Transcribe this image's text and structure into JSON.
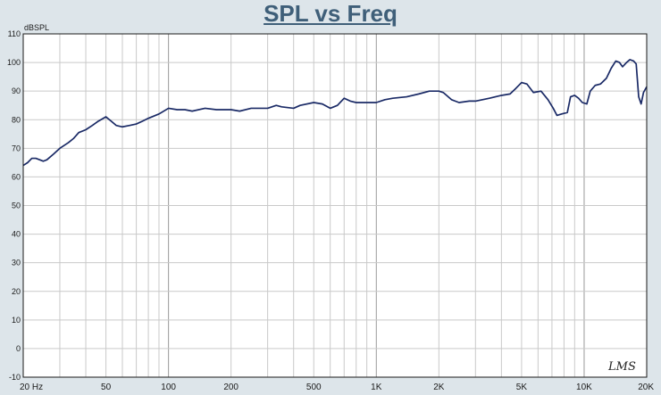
{
  "chart_data": {
    "type": "line",
    "title": "SPL vs Freq",
    "ylabel": "dBSPL",
    "xlabel": "",
    "x_scale": "log",
    "xlim": [
      20,
      20000
    ],
    "ylim": [
      -10,
      110
    ],
    "grid": true,
    "y_ticks": [
      110,
      100,
      90,
      80,
      70,
      60,
      50,
      40,
      30,
      20,
      10,
      0,
      -10
    ],
    "x_ticks": [
      {
        "value": 20,
        "label": "20  Hz"
      },
      {
        "value": 50,
        "label": "50"
      },
      {
        "value": 100,
        "label": "100"
      },
      {
        "value": 200,
        "label": "200"
      },
      {
        "value": 500,
        "label": "500"
      },
      {
        "value": 1000,
        "label": "1K"
      },
      {
        "value": 2000,
        "label": "2K"
      },
      {
        "value": 5000,
        "label": "5K"
      },
      {
        "value": 10000,
        "label": "10K"
      },
      {
        "value": 20000,
        "label": "20K"
      }
    ],
    "series": [
      {
        "color": "#1a2a66",
        "points": [
          [
            20,
            64
          ],
          [
            21,
            65
          ],
          [
            22,
            66.5
          ],
          [
            23,
            66.5
          ],
          [
            24,
            66
          ],
          [
            25,
            65.5
          ],
          [
            26,
            66
          ],
          [
            28,
            68
          ],
          [
            30,
            70
          ],
          [
            33,
            72
          ],
          [
            35,
            73.5
          ],
          [
            37,
            75.5
          ],
          [
            40,
            76.5
          ],
          [
            43,
            78
          ],
          [
            46,
            79.5
          ],
          [
            50,
            81
          ],
          [
            53,
            79.5
          ],
          [
            56,
            78
          ],
          [
            60,
            77.5
          ],
          [
            65,
            78
          ],
          [
            70,
            78.5
          ],
          [
            75,
            79.5
          ],
          [
            80,
            80.5
          ],
          [
            90,
            82
          ],
          [
            100,
            84
          ],
          [
            110,
            83.5
          ],
          [
            120,
            83.5
          ],
          [
            130,
            83
          ],
          [
            150,
            84
          ],
          [
            170,
            83.5
          ],
          [
            200,
            83.5
          ],
          [
            220,
            83
          ],
          [
            250,
            84
          ],
          [
            280,
            84
          ],
          [
            300,
            84
          ],
          [
            330,
            85
          ],
          [
            350,
            84.5
          ],
          [
            400,
            84
          ],
          [
            430,
            85
          ],
          [
            500,
            86
          ],
          [
            550,
            85.5
          ],
          [
            600,
            84
          ],
          [
            650,
            85
          ],
          [
            700,
            87.5
          ],
          [
            750,
            86.5
          ],
          [
            800,
            86
          ],
          [
            900,
            86
          ],
          [
            1000,
            86
          ],
          [
            1100,
            87
          ],
          [
            1200,
            87.5
          ],
          [
            1400,
            88
          ],
          [
            1600,
            89
          ],
          [
            1800,
            90
          ],
          [
            2000,
            90
          ],
          [
            2100,
            89.5
          ],
          [
            2300,
            87
          ],
          [
            2500,
            86
          ],
          [
            2800,
            86.5
          ],
          [
            3000,
            86.5
          ],
          [
            3500,
            87.5
          ],
          [
            4000,
            88.5
          ],
          [
            4400,
            89
          ],
          [
            4700,
            91
          ],
          [
            5000,
            93
          ],
          [
            5300,
            92.5
          ],
          [
            5700,
            89.5
          ],
          [
            6200,
            90
          ],
          [
            6700,
            87
          ],
          [
            7100,
            84
          ],
          [
            7400,
            81.5
          ],
          [
            7800,
            82
          ],
          [
            8300,
            82.5
          ],
          [
            8600,
            88
          ],
          [
            9000,
            88.5
          ],
          [
            9400,
            87.5
          ],
          [
            9800,
            86
          ],
          [
            10300,
            85.5
          ],
          [
            10700,
            90
          ],
          [
            11300,
            92
          ],
          [
            12000,
            92.5
          ],
          [
            12800,
            94.5
          ],
          [
            13500,
            98
          ],
          [
            14200,
            100.5
          ],
          [
            14800,
            100
          ],
          [
            15300,
            98.5
          ],
          [
            16000,
            100
          ],
          [
            16600,
            101
          ],
          [
            17300,
            100.5
          ],
          [
            17800,
            99.5
          ],
          [
            18300,
            88
          ],
          [
            18800,
            85.5
          ],
          [
            19300,
            89.5
          ],
          [
            20000,
            91.5
          ]
        ]
      }
    ],
    "watermark": "LMS"
  }
}
